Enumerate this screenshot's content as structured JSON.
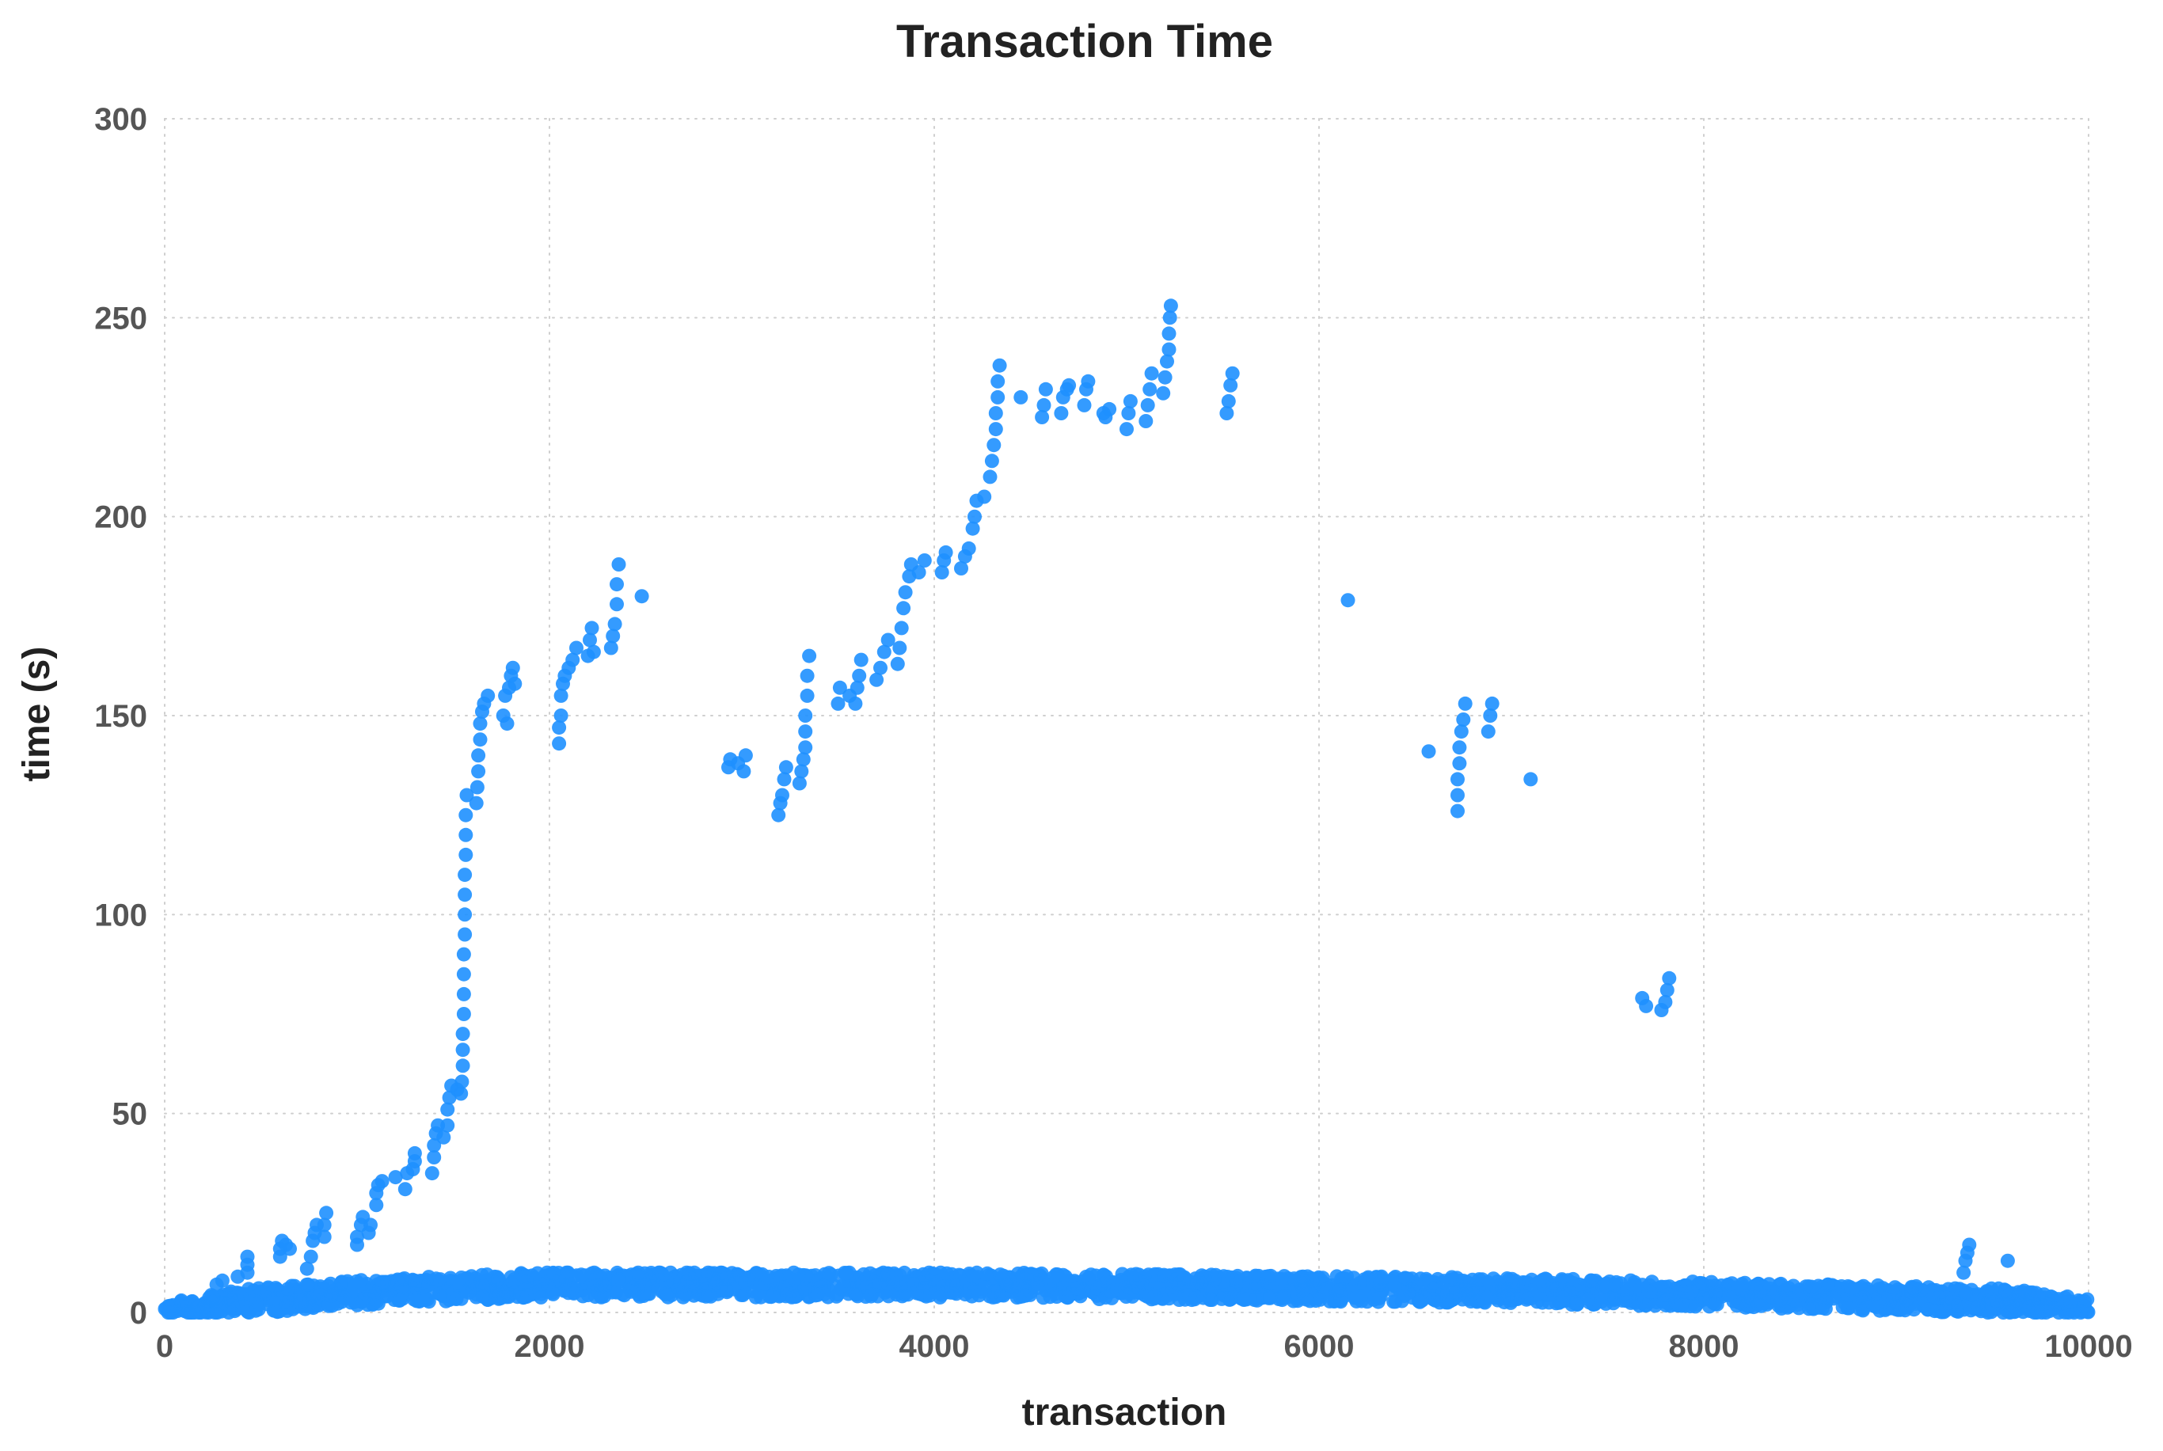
{
  "chart_data": {
    "type": "scatter",
    "title": "Transaction Time",
    "xlabel": "transaction",
    "ylabel": "time (s)",
    "xlim": [
      0,
      10000
    ],
    "ylim": [
      0,
      300
    ],
    "x_ticks": [
      0,
      2000,
      4000,
      6000,
      8000,
      10000
    ],
    "y_ticks": [
      0,
      50,
      100,
      150,
      200,
      250,
      300
    ],
    "grid": true,
    "legend": "none",
    "colors": {
      "point": "#1e90ff",
      "title": "#222222",
      "axis_label": "#222222",
      "tick_label": "#555555",
      "grid": "#cfcfcf"
    },
    "series": [
      {
        "name": "",
        "points": [
          [
            270,
            7
          ],
          [
            300,
            8
          ],
          [
            380,
            9
          ],
          [
            430,
            10
          ],
          [
            430,
            12
          ],
          [
            430,
            14
          ],
          [
            600,
            14
          ],
          [
            600,
            16
          ],
          [
            610,
            18
          ],
          [
            630,
            17
          ],
          [
            650,
            16
          ],
          [
            740,
            11
          ],
          [
            760,
            14
          ],
          [
            770,
            18
          ],
          [
            780,
            20
          ],
          [
            790,
            22
          ],
          [
            830,
            19
          ],
          [
            830,
            22
          ],
          [
            840,
            25
          ],
          [
            1000,
            17
          ],
          [
            1000,
            19
          ],
          [
            1020,
            22
          ],
          [
            1030,
            24
          ],
          [
            1060,
            20
          ],
          [
            1070,
            22
          ],
          [
            1100,
            27
          ],
          [
            1100,
            30
          ],
          [
            1110,
            32
          ],
          [
            1130,
            33
          ],
          [
            1200,
            34
          ],
          [
            1250,
            31
          ],
          [
            1260,
            35
          ],
          [
            1290,
            36
          ],
          [
            1300,
            38
          ],
          [
            1300,
            40
          ],
          [
            1390,
            35
          ],
          [
            1400,
            39
          ],
          [
            1400,
            42
          ],
          [
            1410,
            45
          ],
          [
            1420,
            47
          ],
          [
            1450,
            44
          ],
          [
            1470,
            47
          ],
          [
            1470,
            51
          ],
          [
            1480,
            54
          ],
          [
            1490,
            57
          ],
          [
            1520,
            56
          ],
          [
            1540,
            55
          ],
          [
            1545,
            58
          ],
          [
            1550,
            62
          ],
          [
            1550,
            66
          ],
          [
            1550,
            70
          ],
          [
            1555,
            75
          ],
          [
            1555,
            80
          ],
          [
            1555,
            85
          ],
          [
            1555,
            90
          ],
          [
            1560,
            95
          ],
          [
            1560,
            100
          ],
          [
            1560,
            105
          ],
          [
            1560,
            110
          ],
          [
            1565,
            115
          ],
          [
            1565,
            120
          ],
          [
            1565,
            125
          ],
          [
            1570,
            130
          ],
          [
            1620,
            128
          ],
          [
            1625,
            132
          ],
          [
            1630,
            136
          ],
          [
            1630,
            140
          ],
          [
            1640,
            144
          ],
          [
            1640,
            148
          ],
          [
            1650,
            151
          ],
          [
            1660,
            153
          ],
          [
            1680,
            155
          ],
          [
            1760,
            150
          ],
          [
            1770,
            155
          ],
          [
            1780,
            148
          ],
          [
            1790,
            157
          ],
          [
            1800,
            160
          ],
          [
            1810,
            162
          ],
          [
            1820,
            158
          ],
          [
            2050,
            143
          ],
          [
            2050,
            147
          ],
          [
            2060,
            150
          ],
          [
            2060,
            155
          ],
          [
            2070,
            158
          ],
          [
            2080,
            160
          ],
          [
            2100,
            162
          ],
          [
            2120,
            164
          ],
          [
            2140,
            167
          ],
          [
            2200,
            165
          ],
          [
            2210,
            169
          ],
          [
            2220,
            172
          ],
          [
            2230,
            166
          ],
          [
            2320,
            167
          ],
          [
            2330,
            170
          ],
          [
            2340,
            173
          ],
          [
            2350,
            178
          ],
          [
            2350,
            183
          ],
          [
            2360,
            188
          ],
          [
            2480,
            180
          ],
          [
            2930,
            137
          ],
          [
            2940,
            139
          ],
          [
            2980,
            138
          ],
          [
            3010,
            136
          ],
          [
            3020,
            140
          ],
          [
            3190,
            125
          ],
          [
            3200,
            128
          ],
          [
            3210,
            130
          ],
          [
            3220,
            134
          ],
          [
            3230,
            137
          ],
          [
            3300,
            133
          ],
          [
            3310,
            136
          ],
          [
            3320,
            139
          ],
          [
            3330,
            142
          ],
          [
            3330,
            146
          ],
          [
            3330,
            150
          ],
          [
            3340,
            155
          ],
          [
            3340,
            160
          ],
          [
            3350,
            165
          ],
          [
            3500,
            153
          ],
          [
            3510,
            157
          ],
          [
            3560,
            155
          ],
          [
            3590,
            153
          ],
          [
            3600,
            157
          ],
          [
            3610,
            160
          ],
          [
            3620,
            164
          ],
          [
            3700,
            159
          ],
          [
            3720,
            162
          ],
          [
            3740,
            166
          ],
          [
            3760,
            169
          ],
          [
            3810,
            163
          ],
          [
            3820,
            167
          ],
          [
            3830,
            172
          ],
          [
            3840,
            177
          ],
          [
            3850,
            181
          ],
          [
            3870,
            185
          ],
          [
            3880,
            188
          ],
          [
            3920,
            186
          ],
          [
            3950,
            189
          ],
          [
            4040,
            186
          ],
          [
            4050,
            189
          ],
          [
            4060,
            191
          ],
          [
            4140,
            187
          ],
          [
            4160,
            190
          ],
          [
            4180,
            192
          ],
          [
            4200,
            197
          ],
          [
            4210,
            200
          ],
          [
            4220,
            204
          ],
          [
            4260,
            205
          ],
          [
            4290,
            210
          ],
          [
            4300,
            214
          ],
          [
            4310,
            218
          ],
          [
            4320,
            222
          ],
          [
            4320,
            226
          ],
          [
            4330,
            230
          ],
          [
            4330,
            234
          ],
          [
            4340,
            238
          ],
          [
            4450,
            230
          ],
          [
            4560,
            225
          ],
          [
            4570,
            228
          ],
          [
            4580,
            232
          ],
          [
            4660,
            226
          ],
          [
            4670,
            230
          ],
          [
            4690,
            232
          ],
          [
            4700,
            233
          ],
          [
            4780,
            228
          ],
          [
            4790,
            232
          ],
          [
            4800,
            234
          ],
          [
            4880,
            226
          ],
          [
            4890,
            225
          ],
          [
            4910,
            227
          ],
          [
            5000,
            222
          ],
          [
            5010,
            226
          ],
          [
            5020,
            229
          ],
          [
            5100,
            224
          ],
          [
            5110,
            228
          ],
          [
            5120,
            232
          ],
          [
            5130,
            236
          ],
          [
            5190,
            231
          ],
          [
            5200,
            235
          ],
          [
            5210,
            239
          ],
          [
            5220,
            242
          ],
          [
            5220,
            246
          ],
          [
            5225,
            250
          ],
          [
            5230,
            253
          ],
          [
            5520,
            226
          ],
          [
            5530,
            229
          ],
          [
            5540,
            233
          ],
          [
            5550,
            236
          ],
          [
            6150,
            179
          ],
          [
            6570,
            141
          ],
          [
            6720,
            126
          ],
          [
            6720,
            130
          ],
          [
            6720,
            134
          ],
          [
            6730,
            138
          ],
          [
            6730,
            142
          ],
          [
            6740,
            146
          ],
          [
            6750,
            149
          ],
          [
            6760,
            153
          ],
          [
            6880,
            146
          ],
          [
            6890,
            150
          ],
          [
            6900,
            153
          ],
          [
            7100,
            134
          ],
          [
            7680,
            79
          ],
          [
            7700,
            77
          ],
          [
            7780,
            76
          ],
          [
            7800,
            78
          ],
          [
            7810,
            81
          ],
          [
            7820,
            84
          ],
          [
            9350,
            10
          ],
          [
            9360,
            13
          ],
          [
            9370,
            15
          ],
          [
            9380,
            17
          ],
          [
            9580,
            13
          ]
        ],
        "baseline_band": {
          "x_range": [
            0,
            10000
          ],
          "y_min": 0,
          "y_max": 10,
          "typical_profile": [
            [
              0,
              1
            ],
            [
              500,
              3
            ],
            [
              1000,
              5
            ],
            [
              1500,
              6
            ],
            [
              2000,
              7
            ],
            [
              3000,
              7
            ],
            [
              4000,
              7
            ],
            [
              5000,
              6.5
            ],
            [
              6000,
              6
            ],
            [
              7000,
              5.5
            ],
            [
              8000,
              4.5
            ],
            [
              9000,
              3.5
            ],
            [
              9500,
              3
            ],
            [
              10000,
              1.5
            ]
          ]
        }
      }
    ]
  }
}
